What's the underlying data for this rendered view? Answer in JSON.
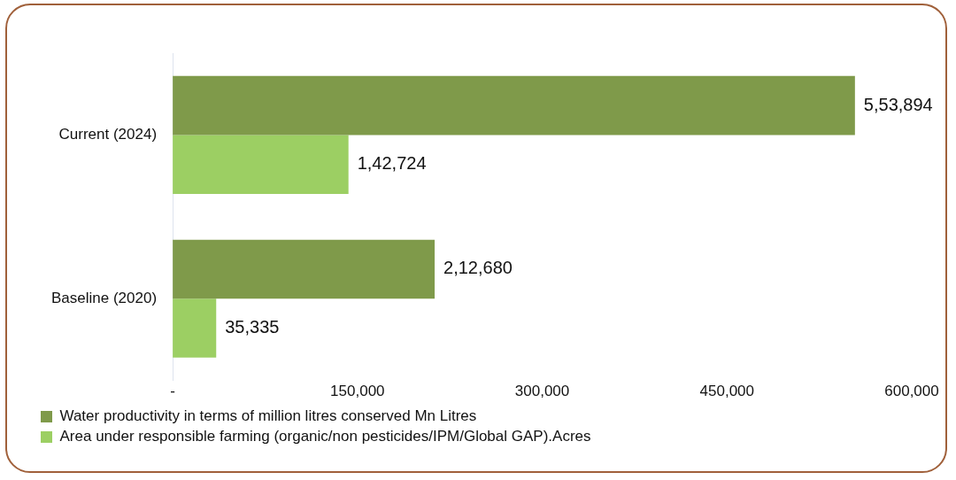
{
  "chart_data": {
    "type": "bar",
    "orientation": "horizontal",
    "categories": [
      "Current (2024)",
      "Baseline (2020)"
    ],
    "series": [
      {
        "name": "Water productivity in terms of million litres conserved Mn Litres",
        "color": "#7f9a4a",
        "values": [
          553894,
          212680
        ],
        "value_labels": [
          "5,53,894",
          "2,12,680"
        ]
      },
      {
        "name": "Area under responsible farming (organic/non pesticides/IPM/Global GAP).Acres",
        "color": "#9ccf63",
        "values": [
          142724,
          35335
        ],
        "value_labels": [
          "1,42,724",
          "35,335"
        ]
      }
    ],
    "xlim": [
      0,
      600000
    ],
    "xticks": [
      {
        "value": 0,
        "label": "-"
      },
      {
        "value": 150000,
        "label": "150,000"
      },
      {
        "value": 300000,
        "label": "300,000"
      },
      {
        "value": 450000,
        "label": "450,000"
      },
      {
        "value": 600000,
        "label": "600,000"
      }
    ],
    "grid": false,
    "legend": "bottom"
  }
}
